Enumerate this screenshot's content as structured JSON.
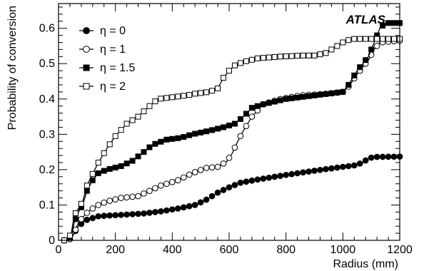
{
  "chart_data": {
    "type": "line",
    "title": "",
    "watermark": "ATLAS",
    "xlabel": "Radius (mm)",
    "ylabel": "Probability of conversion",
    "xlim": [
      0,
      1200
    ],
    "ylim": [
      0,
      0.67
    ],
    "x_ticks": [
      "0",
      "200",
      "400",
      "600",
      "800",
      "1000",
      "1200"
    ],
    "y_ticks": [
      "0",
      "0.1",
      "0.2",
      "0.3",
      "0.4",
      "0.5",
      "0.6"
    ],
    "grid": false,
    "legend_position": "top-left",
    "series": [
      {
        "name": "η = 0",
        "marker": "filled-circle",
        "points": [
          [
            30,
            0
          ],
          [
            45,
            0.005
          ],
          [
            55,
            0.02
          ],
          [
            70,
            0.04
          ],
          [
            85,
            0.05
          ],
          [
            100,
            0.058
          ],
          [
            120,
            0.063
          ],
          [
            140,
            0.068
          ],
          [
            170,
            0.07
          ],
          [
            220,
            0.072
          ],
          [
            300,
            0.076
          ],
          [
            360,
            0.082
          ],
          [
            420,
            0.09
          ],
          [
            480,
            0.1
          ],
          [
            520,
            0.115
          ],
          [
            560,
            0.135
          ],
          [
            600,
            0.15
          ],
          [
            640,
            0.163
          ],
          [
            700,
            0.172
          ],
          [
            800,
            0.185
          ],
          [
            900,
            0.197
          ],
          [
            1000,
            0.208
          ],
          [
            1040,
            0.212
          ],
          [
            1070,
            0.22
          ],
          [
            1090,
            0.232
          ],
          [
            1110,
            0.236
          ],
          [
            1200,
            0.237
          ]
        ]
      },
      {
        "name": "η = 1",
        "marker": "open-circle",
        "points": [
          [
            30,
            0
          ],
          [
            45,
            0.005
          ],
          [
            55,
            0.02
          ],
          [
            70,
            0.05
          ],
          [
            85,
            0.065
          ],
          [
            100,
            0.078
          ],
          [
            120,
            0.09
          ],
          [
            140,
            0.1
          ],
          [
            170,
            0.11
          ],
          [
            220,
            0.12
          ],
          [
            280,
            0.125
          ],
          [
            320,
            0.14
          ],
          [
            360,
            0.155
          ],
          [
            420,
            0.17
          ],
          [
            470,
            0.19
          ],
          [
            520,
            0.205
          ],
          [
            560,
            0.208
          ],
          [
            590,
            0.222
          ],
          [
            610,
            0.245
          ],
          [
            630,
            0.28
          ],
          [
            650,
            0.31
          ],
          [
            680,
            0.35
          ],
          [
            720,
            0.385
          ],
          [
            780,
            0.4
          ],
          [
            850,
            0.41
          ],
          [
            950,
            0.415
          ],
          [
            1000,
            0.42
          ],
          [
            1020,
            0.435
          ],
          [
            1050,
            0.47
          ],
          [
            1090,
            0.51
          ],
          [
            1110,
            0.54
          ],
          [
            1130,
            0.56
          ],
          [
            1200,
            0.565
          ]
        ]
      },
      {
        "name": "η = 1.5",
        "marker": "filled-square",
        "points": [
          [
            30,
            0
          ],
          [
            45,
            0.01
          ],
          [
            55,
            0.05
          ],
          [
            70,
            0.08
          ],
          [
            85,
            0.1
          ],
          [
            100,
            0.14
          ],
          [
            120,
            0.17
          ],
          [
            140,
            0.19
          ],
          [
            170,
            0.2
          ],
          [
            220,
            0.21
          ],
          [
            260,
            0.225
          ],
          [
            300,
            0.25
          ],
          [
            330,
            0.27
          ],
          [
            380,
            0.285
          ],
          [
            430,
            0.29
          ],
          [
            470,
            0.3
          ],
          [
            530,
            0.31
          ],
          [
            580,
            0.32
          ],
          [
            620,
            0.33
          ],
          [
            650,
            0.35
          ],
          [
            680,
            0.375
          ],
          [
            720,
            0.385
          ],
          [
            800,
            0.4
          ],
          [
            900,
            0.41
          ],
          [
            1000,
            0.42
          ],
          [
            1020,
            0.44
          ],
          [
            1050,
            0.48
          ],
          [
            1090,
            0.52
          ],
          [
            1110,
            0.56
          ],
          [
            1130,
            0.6
          ],
          [
            1150,
            0.615
          ],
          [
            1200,
            0.615
          ]
        ]
      },
      {
        "name": "η = 2",
        "marker": "open-square",
        "points": [
          [
            30,
            0
          ],
          [
            45,
            0.02
          ],
          [
            55,
            0.07
          ],
          [
            70,
            0.09
          ],
          [
            85,
            0.11
          ],
          [
            100,
            0.155
          ],
          [
            115,
            0.18
          ],
          [
            140,
            0.22
          ],
          [
            170,
            0.26
          ],
          [
            200,
            0.295
          ],
          [
            240,
            0.33
          ],
          [
            280,
            0.35
          ],
          [
            300,
            0.365
          ],
          [
            320,
            0.38
          ],
          [
            350,
            0.4
          ],
          [
            400,
            0.405
          ],
          [
            450,
            0.41
          ],
          [
            480,
            0.415
          ],
          [
            530,
            0.42
          ],
          [
            560,
            0.43
          ],
          [
            580,
            0.46
          ],
          [
            600,
            0.48
          ],
          [
            620,
            0.495
          ],
          [
            650,
            0.505
          ],
          [
            700,
            0.515
          ],
          [
            780,
            0.52
          ],
          [
            860,
            0.523
          ],
          [
            900,
            0.523
          ],
          [
            940,
            0.53
          ],
          [
            970,
            0.545
          ],
          [
            1000,
            0.56
          ],
          [
            1030,
            0.57
          ],
          [
            1200,
            0.57
          ]
        ]
      }
    ]
  }
}
